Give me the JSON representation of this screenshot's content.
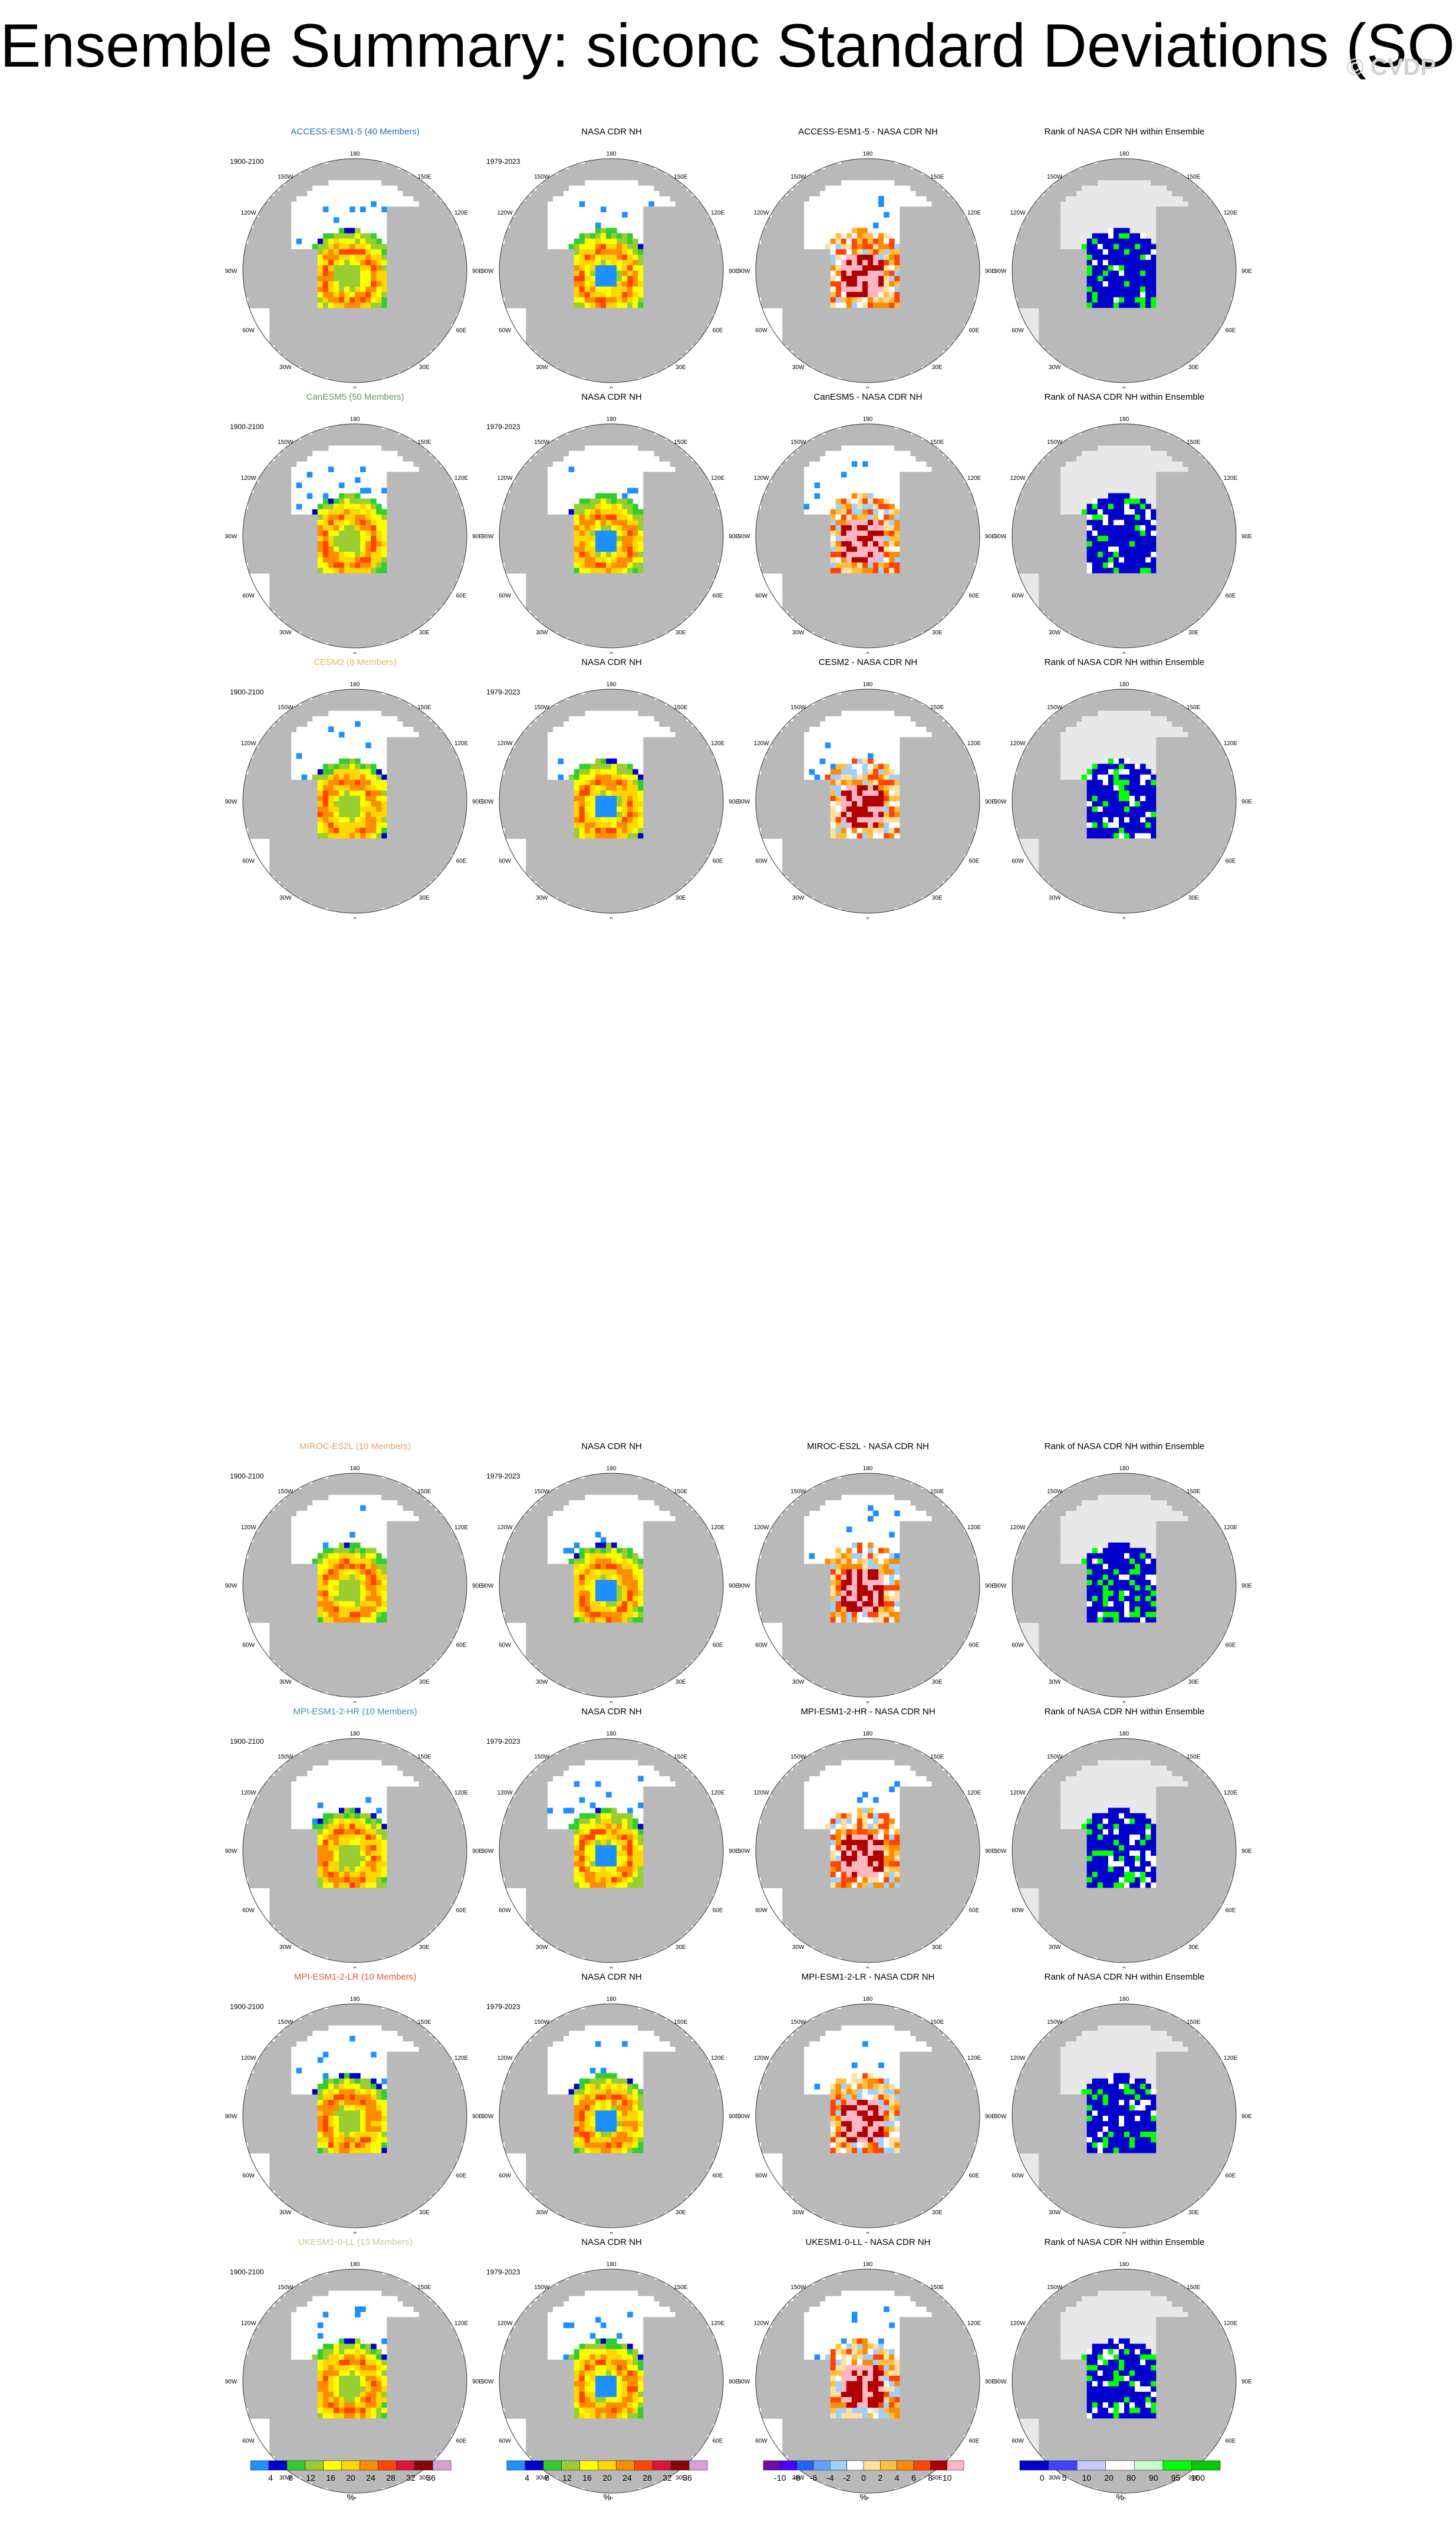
{
  "header": {
    "title": "Ensemble Summary: siconc Standard Deviations (SON)",
    "watermark": "© CVDP"
  },
  "colors": {
    "std": [
      "#1e90ff",
      "#0000cd",
      "#32cd32",
      "#9acd32",
      "#ffff00",
      "#ffd700",
      "#ff8c00",
      "#ff4500",
      "#dc143c",
      "#8b0000",
      "#d8a0d8"
    ],
    "diff": [
      "#6a0dad",
      "#4b00ff",
      "#1e64ff",
      "#64a0ff",
      "#a0d0ff",
      "#ffffff",
      "#ffe0a0",
      "#ffc040",
      "#ff8c00",
      "#ff4500",
      "#b00000",
      "#ffb6c1"
    ],
    "rank": [
      "#0000cd",
      "#4040ff",
      "#c8c8ff",
      "#ffffff",
      "#c8ffc8",
      "#00ff00",
      "#00cc00"
    ],
    "land": "#b9b9b9",
    "ocean": "#ffffff"
  },
  "map_labels": {
    "top": "180",
    "bottom": "0",
    "left": "90W",
    "right": "90E",
    "upper_left_1": "150W",
    "upper_left_2": "120W",
    "upper_right_1": "150E",
    "upper_right_2": "120E",
    "lower_left_1": "60W",
    "lower_left_2": "30W",
    "lower_right_1": "60E",
    "lower_right_2": "30E"
  },
  "chart_data": [
    {
      "type": "heatmap",
      "map_grid": true,
      "rows": [
        {
          "model": "ACCESS-ESM1-5 (40 Members)",
          "model_color": "#1f6fb0",
          "model_years": "1900-2100",
          "obs_title": "NASA CDR NH",
          "obs_years": "1979-2023",
          "diff_title": "ACCESS-ESM1-5 - NASA CDR NH",
          "rank_title": "Rank of NASA CDR NH within Ensemble"
        },
        {
          "model": "CanESM5 (50 Members)",
          "model_color": "#5a9a5a",
          "model_years": "1900-2100",
          "obs_title": "NASA CDR NH",
          "obs_years": "1979-2023",
          "diff_title": "CanESM5 - NASA CDR NH",
          "rank_title": "Rank of NASA CDR NH within Ensemble"
        },
        {
          "model": "CESM2 (8 Members)",
          "model_color": "#e5b85a",
          "model_years": "1900-2100",
          "obs_title": "NASA CDR NH",
          "obs_years": "1979-2023",
          "diff_title": "CESM2 - NASA CDR NH",
          "rank_title": "Rank of NASA CDR NH within Ensemble"
        },
        {
          "model": "MIROC-ES2L (10 Members)",
          "model_color": "#e6a070",
          "model_years": "1900-2100",
          "obs_title": "NASA CDR NH",
          "obs_years": "1979-2023",
          "diff_title": "MIROC-ES2L - NASA CDR NH",
          "rank_title": "Rank of NASA CDR NH within Ensemble"
        },
        {
          "model": "MPI-ESM1-2-HR (10 Members)",
          "model_color": "#4a8aa0",
          "model_years": "1900-2100",
          "obs_title": "NASA CDR NH",
          "obs_years": "1979-2023",
          "diff_title": "MPI-ESM1-2-HR - NASA CDR NH",
          "rank_title": "Rank of NASA CDR NH within Ensemble"
        },
        {
          "model": "MPI-ESM1-2-LR (10 Members)",
          "model_color": "#e06030",
          "model_years": "1900-2100",
          "obs_title": "NASA CDR NH",
          "obs_years": "1979-2023",
          "diff_title": "MPI-ESM1-2-LR - NASA CDR NH",
          "rank_title": "Rank of NASA CDR NH within Ensemble"
        },
        {
          "model": "UKESM1-0-LL (13 Members)",
          "model_color": "#c8c890",
          "model_years": "1900-2100",
          "obs_title": "NASA CDR NH",
          "obs_years": "1979-2023",
          "diff_title": "UKESM1-0-LL - NASA CDR NH",
          "rank_title": "Rank of NASA CDR NH within Ensemble"
        }
      ],
      "colorbars": [
        {
          "name": "std",
          "ticks": [
            "4",
            "8",
            "12",
            "16",
            "20",
            "24",
            "28",
            "32",
            "36"
          ],
          "unit": "%"
        },
        {
          "name": "std",
          "ticks": [
            "4",
            "8",
            "12",
            "16",
            "20",
            "24",
            "28",
            "32",
            "36"
          ],
          "unit": "%"
        },
        {
          "name": "diff",
          "ticks": [
            "-10",
            "-8",
            "-6",
            "-4",
            "-2",
            "0",
            "2",
            "4",
            "6",
            "8",
            "10"
          ],
          "unit": "%"
        },
        {
          "name": "rank",
          "ticks": [
            "0",
            "5",
            "10",
            "20",
            "80",
            "90",
            "95",
            "100"
          ],
          "unit": "%"
        }
      ]
    }
  ]
}
